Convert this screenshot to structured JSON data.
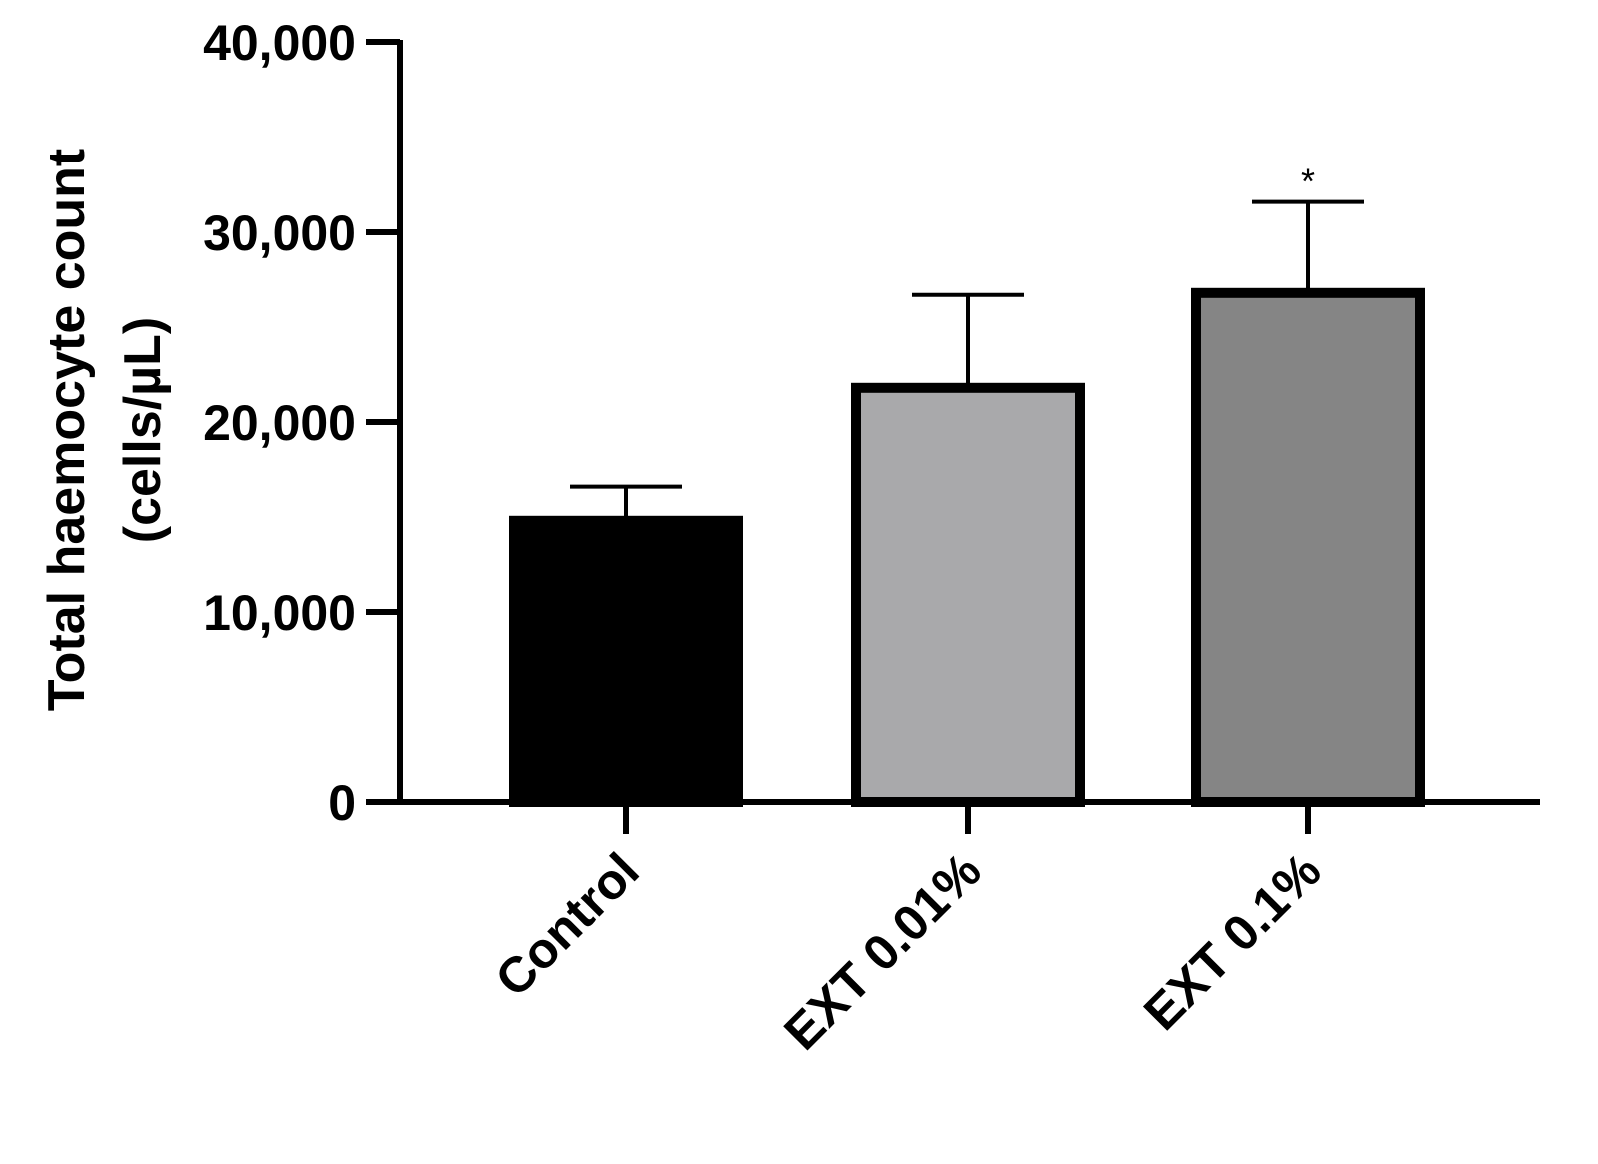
{
  "chart_data": {
    "type": "bar",
    "title": "",
    "xlabel": "",
    "ylabel_line1": "Total haemocyte count",
    "ylabel_line2": "(cells/µL)",
    "categories": [
      "Control",
      "EXT 0.01%",
      "EXT 0.1%"
    ],
    "values": [
      14800,
      21800,
      26800
    ],
    "error_upper": [
      16600,
      26700,
      31600
    ],
    "annotations": [
      "",
      "",
      "*"
    ],
    "bar_colors": [
      "#000000",
      "#a9a9ab",
      "#858585"
    ],
    "ylim": [
      0,
      40000
    ],
    "yticks": [
      0,
      10000,
      20000,
      30000,
      40000
    ],
    "ytick_labels": [
      "0",
      "10,000",
      "20,000",
      "30,000",
      "40,000"
    ],
    "grid": false
  }
}
